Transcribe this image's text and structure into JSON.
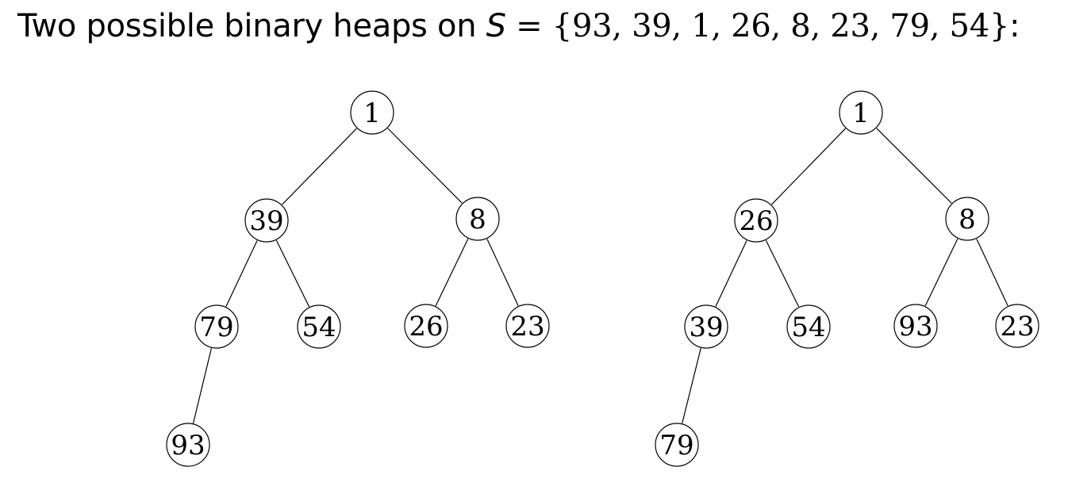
{
  "title": {
    "prefix": "Two possible binary heaps on ",
    "set_name": "S",
    "equals": " = ",
    "set_body": "{93, 39, 1, 26, 8, 23, 79, 54}",
    "suffix": ":"
  },
  "heaps": [
    {
      "id": "left-heap",
      "nodes": [
        {
          "id": "n1",
          "label": "1"
        },
        {
          "id": "n39",
          "label": "39"
        },
        {
          "id": "n8",
          "label": "8"
        },
        {
          "id": "n79",
          "label": "79"
        },
        {
          "id": "n54",
          "label": "54"
        },
        {
          "id": "n26",
          "label": "26"
        },
        {
          "id": "n23",
          "label": "23"
        },
        {
          "id": "n93",
          "label": "93"
        }
      ],
      "edges": [
        [
          "n1",
          "n39"
        ],
        [
          "n1",
          "n8"
        ],
        [
          "n39",
          "n79"
        ],
        [
          "n39",
          "n54"
        ],
        [
          "n8",
          "n26"
        ],
        [
          "n8",
          "n23"
        ],
        [
          "n79",
          "n93"
        ]
      ]
    },
    {
      "id": "right-heap",
      "nodes": [
        {
          "id": "m1",
          "label": "1"
        },
        {
          "id": "m26",
          "label": "26"
        },
        {
          "id": "m8",
          "label": "8"
        },
        {
          "id": "m39",
          "label": "39"
        },
        {
          "id": "m54",
          "label": "54"
        },
        {
          "id": "m93",
          "label": "93"
        },
        {
          "id": "m23",
          "label": "23"
        },
        {
          "id": "m79",
          "label": "79"
        }
      ],
      "edges": [
        [
          "m1",
          "m26"
        ],
        [
          "m1",
          "m8"
        ],
        [
          "m26",
          "m39"
        ],
        [
          "m26",
          "m54"
        ],
        [
          "m8",
          "m93"
        ],
        [
          "m8",
          "m23"
        ],
        [
          "m39",
          "m79"
        ]
      ]
    }
  ]
}
